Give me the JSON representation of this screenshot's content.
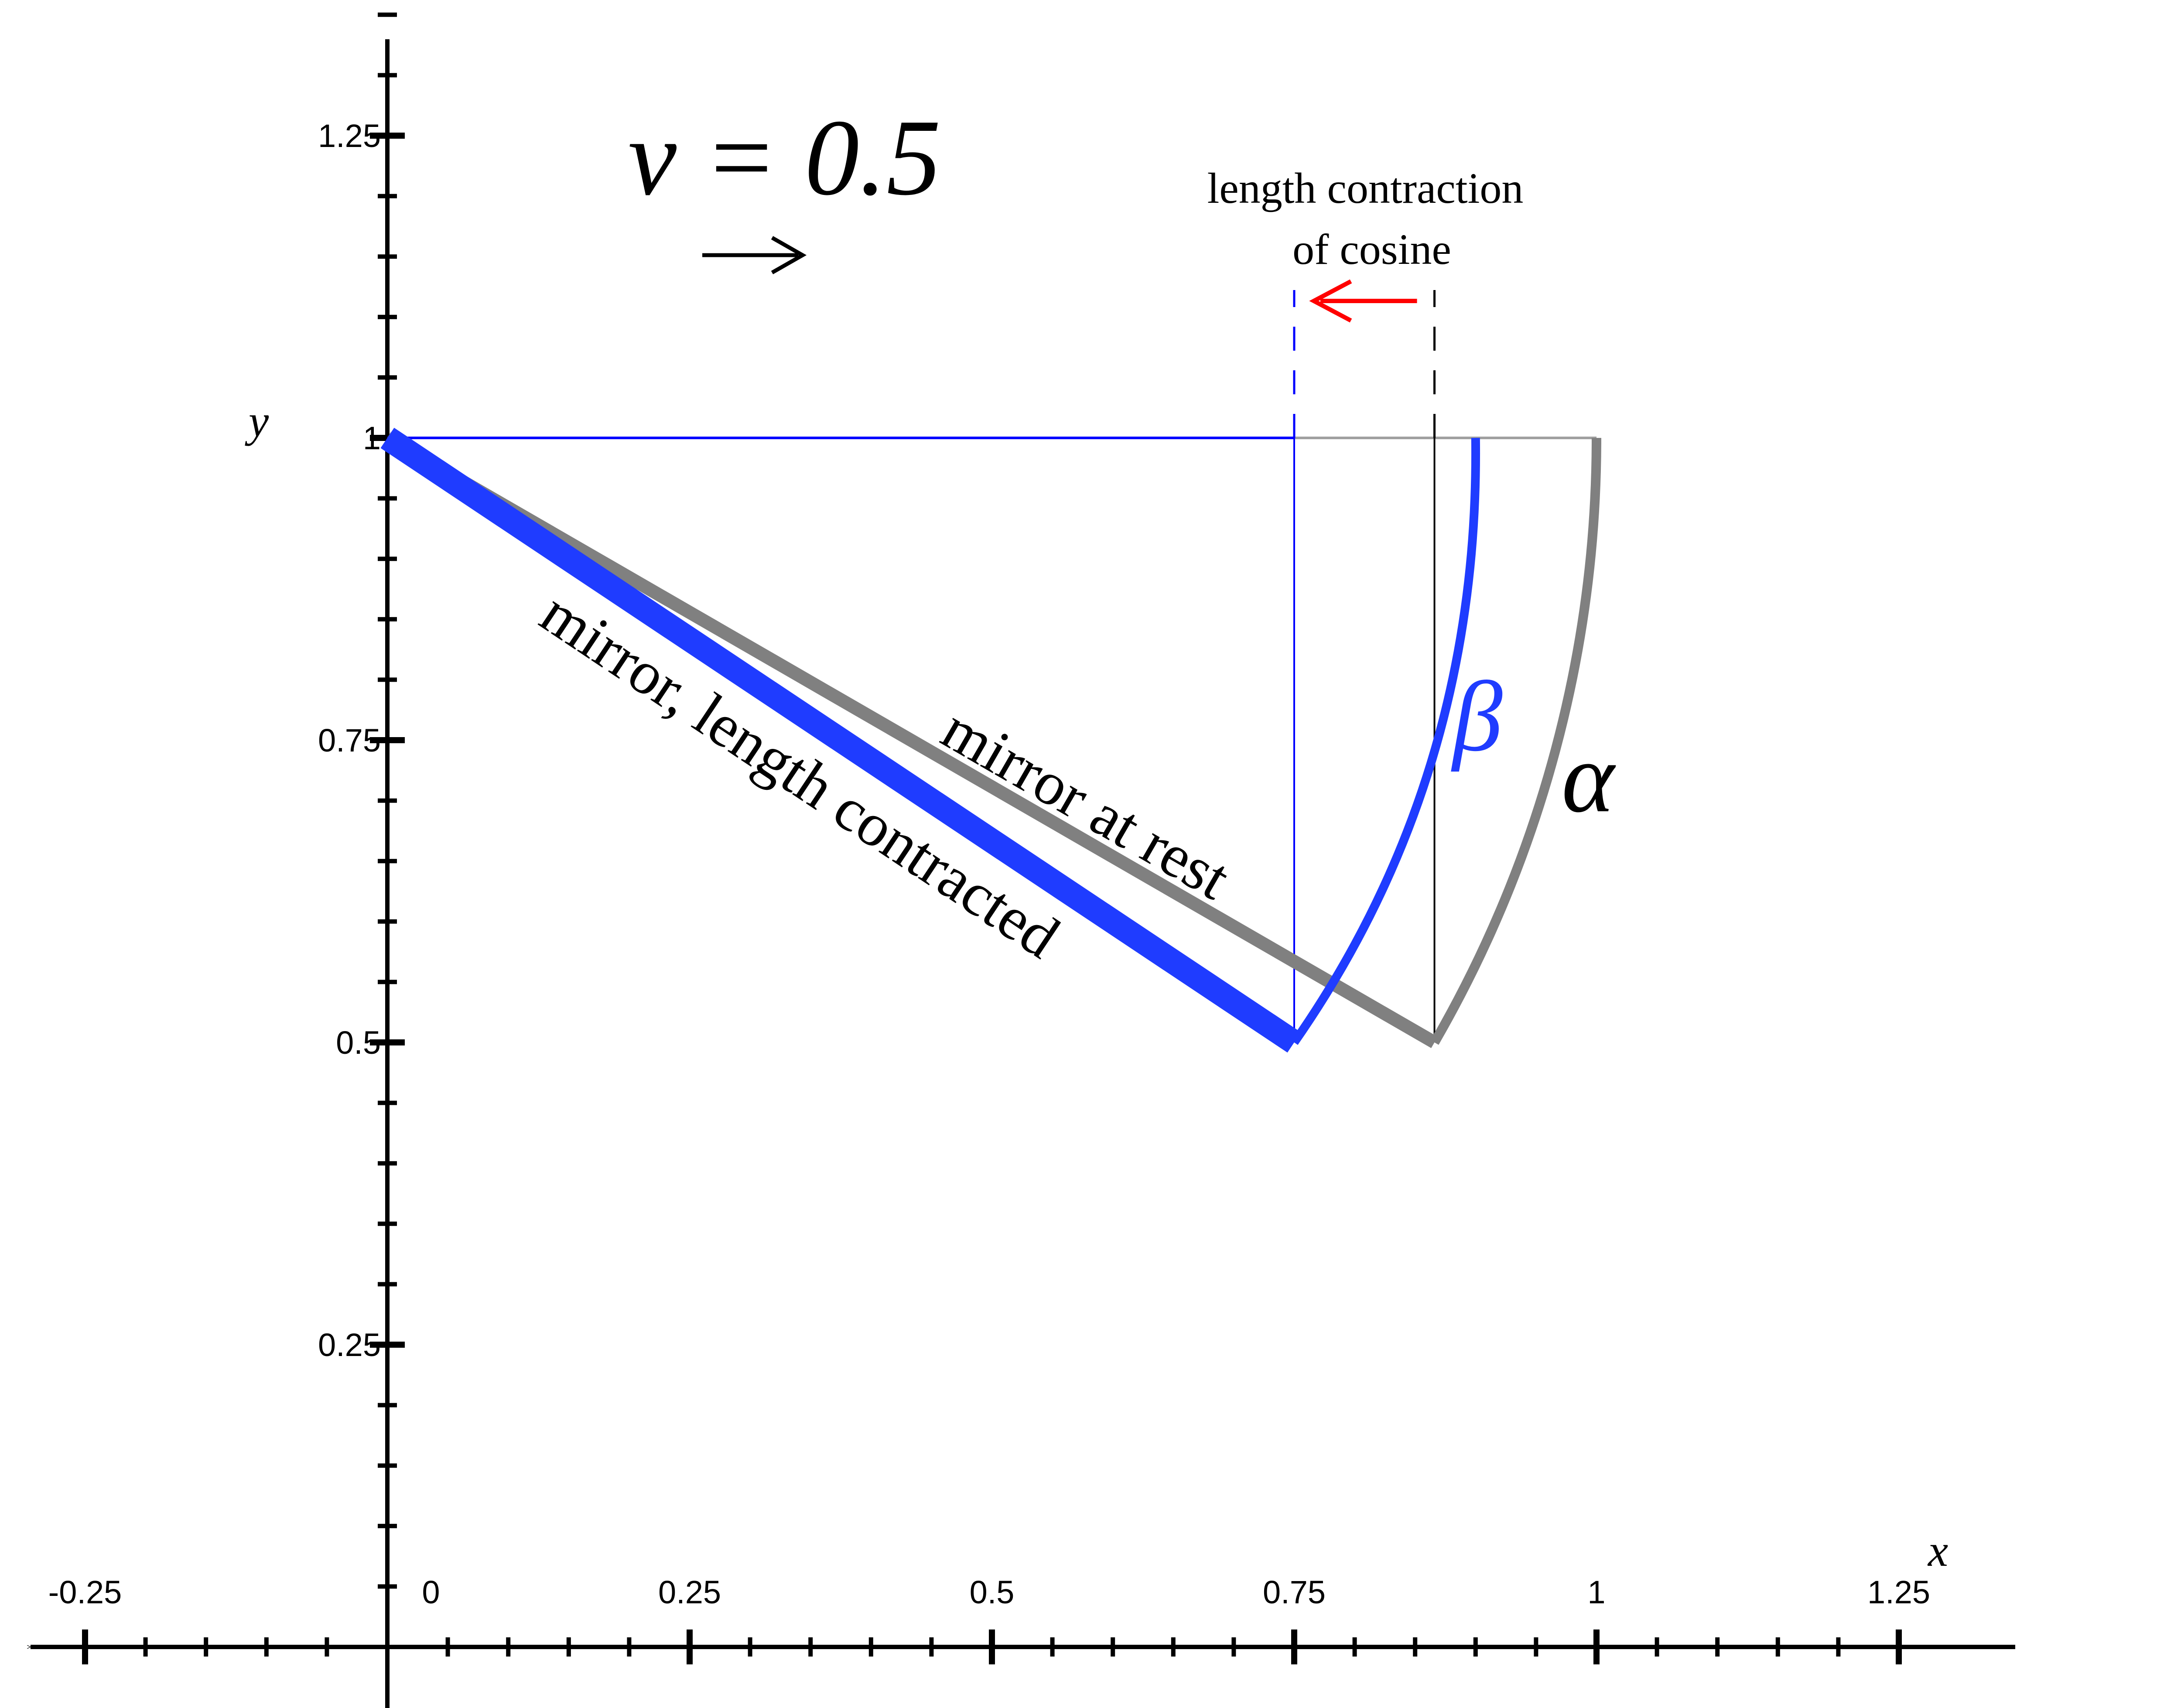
{
  "chart_data": {
    "type": "line",
    "title": "",
    "xlabel": "x",
    "ylabel": "y",
    "xlim": [
      -0.25,
      1.25
    ],
    "ylim": [
      0,
      1.25
    ],
    "x_ticks": [
      {
        "value": -0.25,
        "label": "-0.25"
      },
      {
        "value": 0,
        "label": "0"
      },
      {
        "value": 0.25,
        "label": "0.25"
      },
      {
        "value": 0.5,
        "label": "0.5"
      },
      {
        "value": 0.75,
        "label": "0.75"
      },
      {
        "value": 1,
        "label": "1"
      },
      {
        "value": 1.25,
        "label": "1.25"
      }
    ],
    "y_ticks": [
      {
        "value": 0.25,
        "label": "0.25"
      },
      {
        "value": 0.5,
        "label": "0.5"
      },
      {
        "value": 0.75,
        "label": "0.75"
      },
      {
        "value": 1,
        "label": "1"
      },
      {
        "value": 1.25,
        "label": "1.25"
      }
    ],
    "velocity_label": "v = 0.5",
    "length_contraction_label": [
      "length contraction",
      "of cosine"
    ],
    "series": [
      {
        "name": "mirror at rest",
        "color": "#808080",
        "x": [
          0,
          0.866
        ],
        "y": [
          1,
          0.5
        ]
      },
      {
        "name": "mirror, length contracted",
        "color": "#1f3cff",
        "x": [
          0,
          0.75
        ],
        "y": [
          1,
          0.5
        ]
      },
      {
        "name": "α",
        "color": "#808080",
        "arc": {
          "center": [
            0,
            1
          ],
          "radius": 1,
          "from": [
            0.866,
            0.5
          ],
          "to": [
            1,
            1
          ]
        }
      },
      {
        "name": "β",
        "color": "#1f3cff",
        "arc": {
          "from": [
            0.75,
            0.5
          ],
          "to": [
            0.9,
            1
          ]
        }
      }
    ],
    "reference_lines": [
      {
        "type": "horizontal",
        "y": 1,
        "x_range": [
          0,
          0.75
        ],
        "color": "#0000ff"
      },
      {
        "type": "horizontal",
        "y": 1,
        "x_range": [
          0.75,
          1
        ],
        "color": "#a0a0a0"
      },
      {
        "type": "vertical",
        "x": 0.75,
        "y_range": [
          0.5,
          1
        ],
        "color": "#0000ff"
      },
      {
        "type": "vertical",
        "x": 0.866,
        "y_range": [
          0.5,
          1
        ],
        "color": "#000000"
      }
    ],
    "arrows": [
      {
        "from_x": 0.866,
        "to_x": 0.75,
        "color": "#ff0000"
      }
    ],
    "colors": {
      "rest": "#808080",
      "contracted": "#1f3cff",
      "blue_line": "#0000ff",
      "arrow": "#ff0000"
    }
  }
}
